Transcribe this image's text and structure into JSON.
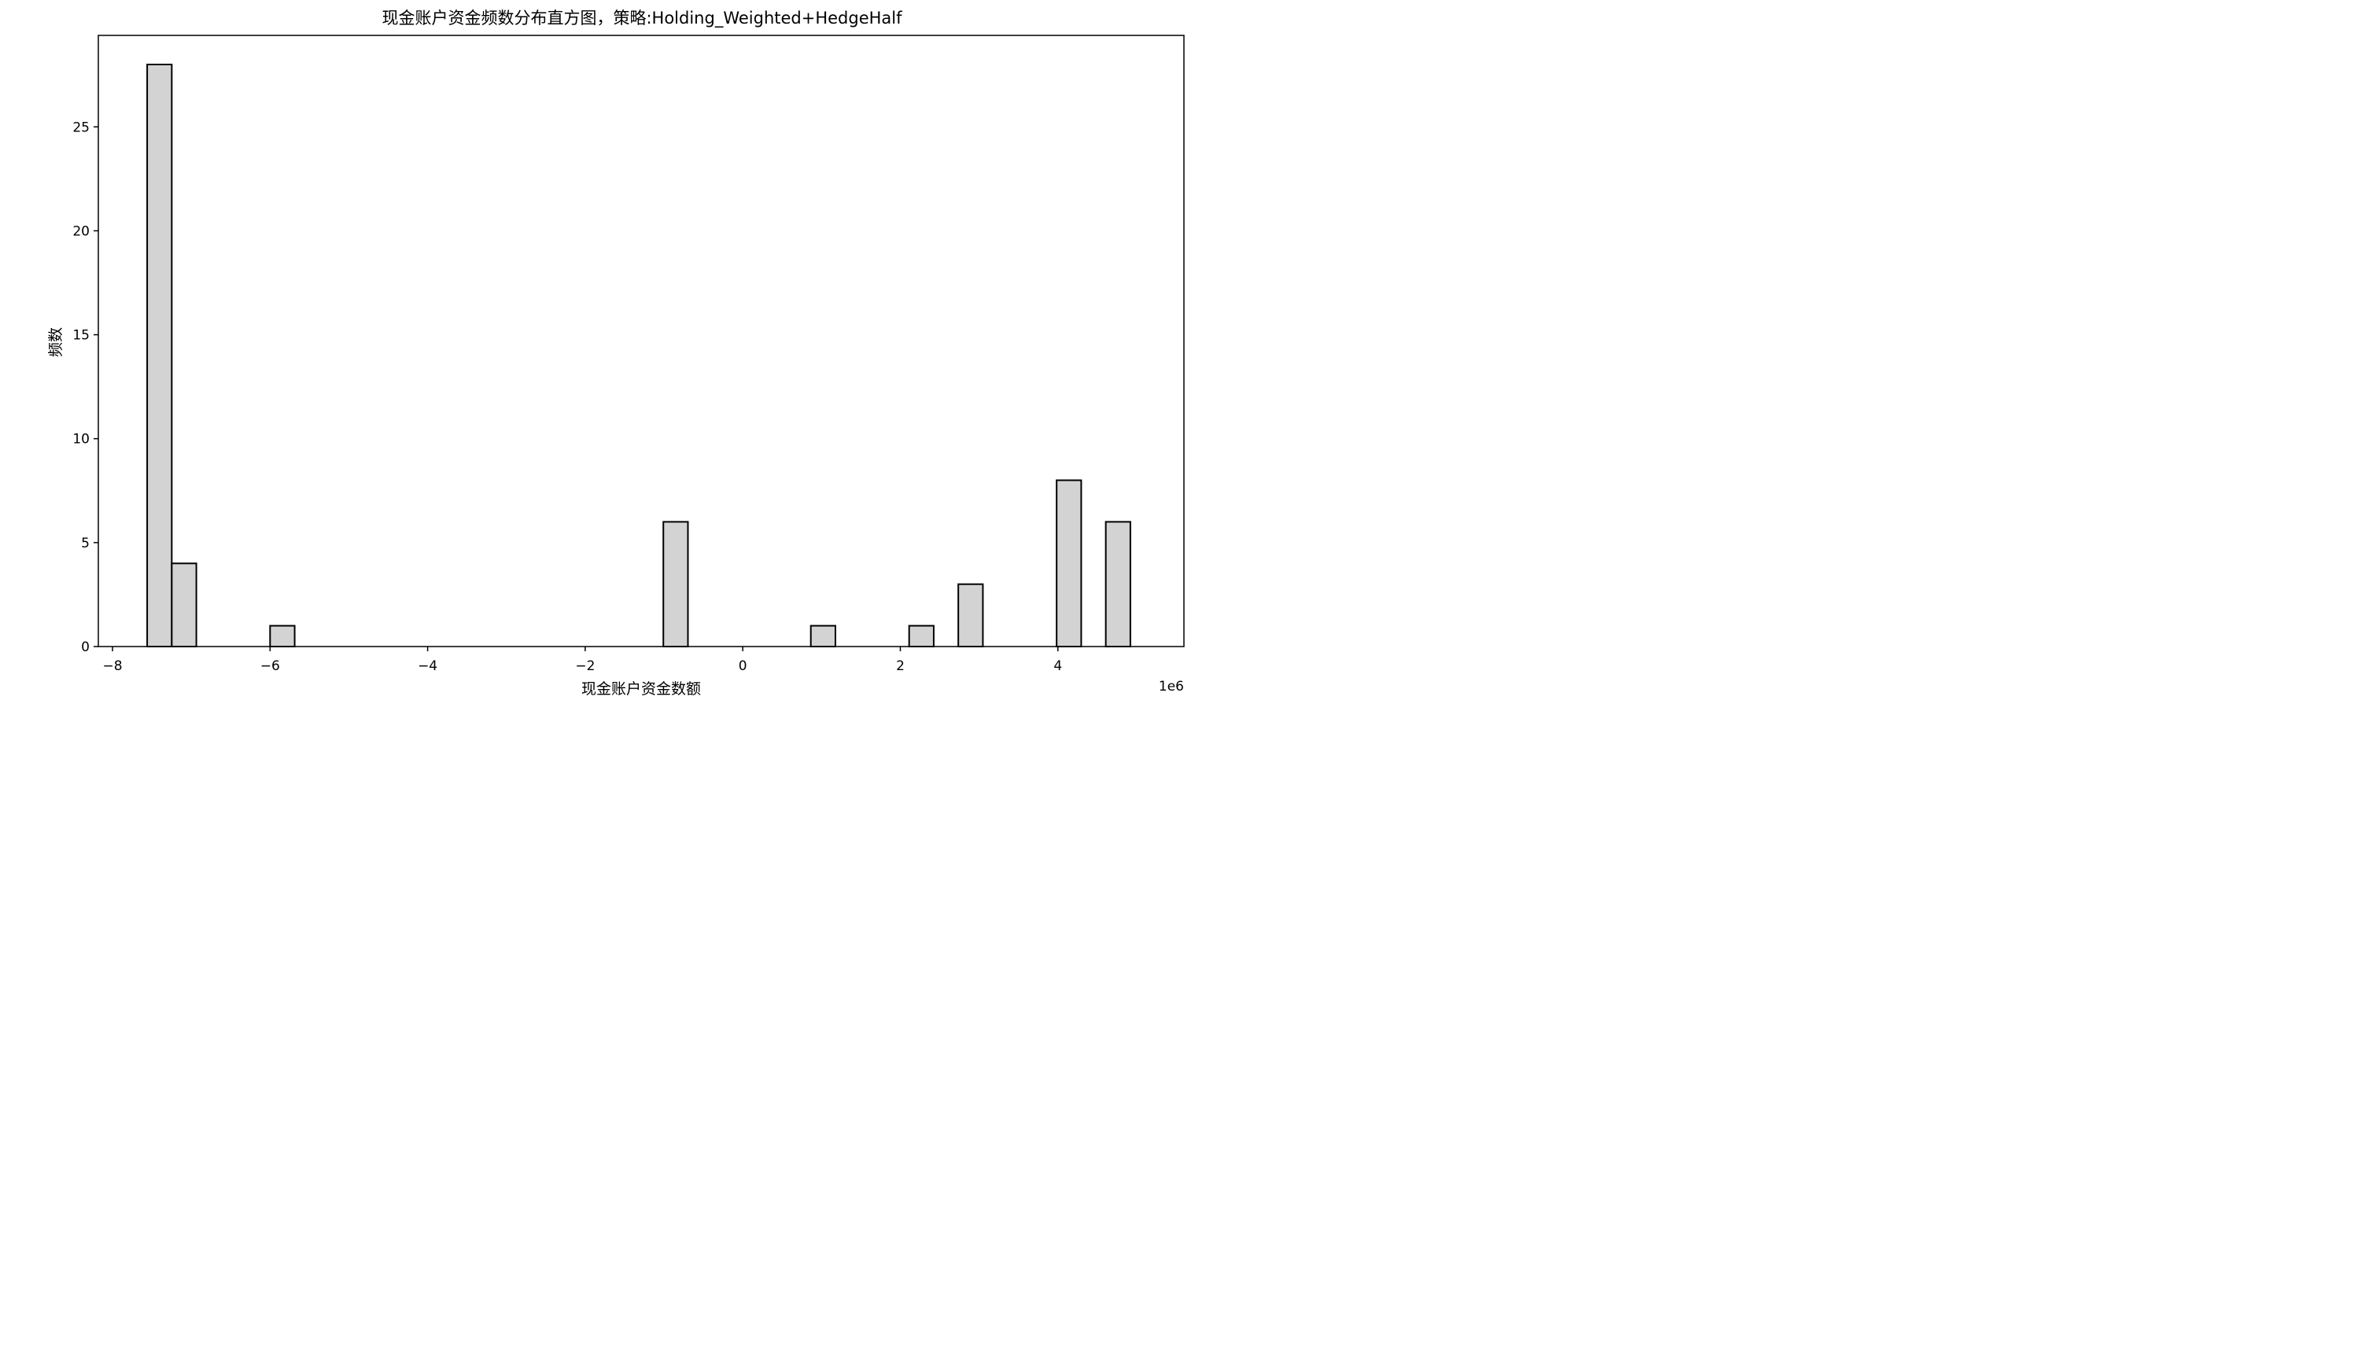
{
  "chart_data": {
    "type": "bar",
    "title": "现金账户资金频数分布直方图，策略:Holding_Weighted+HedgeHalf",
    "xlabel": "现金账户资金数额",
    "ylabel": "频数",
    "x_offset_label": "1e6",
    "xlim": [
      -8.18,
      5.6
    ],
    "ylim": [
      0,
      29.4
    ],
    "x_ticks": [
      -8,
      -6,
      -4,
      -2,
      0,
      2,
      4
    ],
    "x_tick_labels": [
      "−8",
      "−6",
      "−4",
      "−2",
      "0",
      "2",
      "4"
    ],
    "y_ticks": [
      0,
      5,
      10,
      15,
      20,
      25
    ],
    "y_tick_labels": [
      "0",
      "5",
      "10",
      "15",
      "20",
      "25"
    ],
    "bin_edges": [
      -7.56,
      -7.248,
      -6.936,
      -6.624,
      -6.312,
      -6.0,
      -5.688,
      -5.376,
      -5.064,
      -4.752,
      -4.44,
      -4.128,
      -3.816,
      -3.504,
      -3.192,
      -2.88,
      -2.568,
      -2.256,
      -1.944,
      -1.632,
      -1.32,
      -1.008,
      -0.696,
      -0.384,
      -0.072,
      0.24,
      0.552,
      0.864,
      1.176,
      1.488,
      1.8,
      2.112,
      2.424,
      2.736,
      3.048,
      3.36,
      3.672,
      3.984,
      4.296,
      4.608,
      4.92
    ],
    "counts": [
      28,
      4,
      0,
      0,
      0,
      1,
      0,
      0,
      0,
      0,
      0,
      0,
      0,
      0,
      0,
      0,
      0,
      0,
      0,
      0,
      0,
      6,
      0,
      0,
      0,
      0,
      0,
      1,
      0,
      0,
      0,
      1,
      0,
      3,
      0,
      0,
      0,
      8,
      0,
      6
    ],
    "bar_fill": "#d3d3d3",
    "bar_edge": "#000000",
    "grid": false
  }
}
